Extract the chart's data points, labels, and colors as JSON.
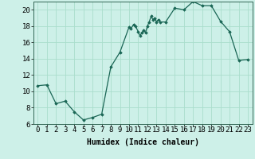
{
  "xlabel": "Humidex (Indice chaleur)",
  "background_color": "#cdf0e8",
  "grid_color": "#aaddcc",
  "line_color": "#1a6655",
  "marker_color": "#1a6655",
  "x_values": [
    0,
    1,
    2,
    3,
    4,
    5,
    6,
    7,
    8,
    9,
    10,
    10.2,
    10.5,
    10.7,
    11,
    11.2,
    11.4,
    11.6,
    11.8,
    12,
    12.2,
    12.4,
    12.6,
    12.8,
    13,
    13.2,
    13.4,
    14,
    15,
    16,
    17,
    18,
    19,
    20,
    21,
    22,
    23
  ],
  "y_values": [
    10.7,
    10.8,
    8.5,
    8.8,
    7.5,
    6.5,
    6.8,
    7.2,
    13.0,
    14.8,
    17.9,
    17.7,
    18.2,
    18.0,
    17.3,
    16.8,
    17.2,
    17.5,
    17.2,
    18.0,
    18.5,
    19.2,
    18.8,
    19.0,
    18.5,
    18.8,
    18.5,
    18.5,
    20.2,
    20.0,
    21.0,
    20.5,
    20.5,
    18.6,
    17.3,
    13.8,
    13.9
  ],
  "ylim": [
    6,
    21
  ],
  "xlim": [
    -0.5,
    23.5
  ],
  "yticks": [
    6,
    8,
    10,
    12,
    14,
    16,
    18,
    20
  ],
  "xticks": [
    0,
    1,
    2,
    3,
    4,
    5,
    6,
    7,
    8,
    9,
    10,
    11,
    12,
    13,
    14,
    15,
    16,
    17,
    18,
    19,
    20,
    21,
    22,
    23
  ],
  "xlabel_fontsize": 7,
  "tick_fontsize": 6.5
}
